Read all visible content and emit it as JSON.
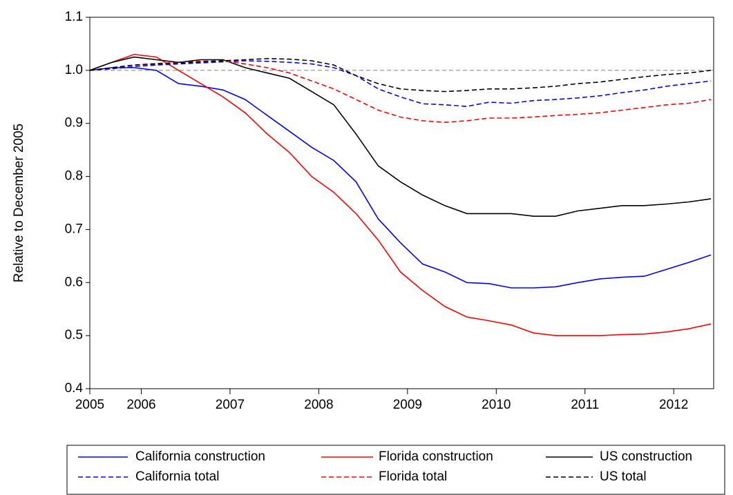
{
  "chart_data": {
    "type": "line",
    "y_label": "Relative to December 2005",
    "x": [
      2005.42,
      2005.67,
      2005.92,
      2006.17,
      2006.42,
      2006.67,
      2006.92,
      2007.17,
      2007.42,
      2007.67,
      2007.92,
      2008.17,
      2008.42,
      2008.67,
      2008.92,
      2009.17,
      2009.42,
      2009.67,
      2009.92,
      2010.17,
      2010.42,
      2010.67,
      2010.92,
      2011.17,
      2011.42,
      2011.67,
      2011.92,
      2012.17,
      2012.42
    ],
    "xlim": [
      2005.42,
      2012.45
    ],
    "xticks": [
      {
        "value": 2005.42,
        "label": "2005"
      },
      2006,
      2007,
      2008,
      2009,
      2010,
      2011,
      2012
    ],
    "ylim": [
      0.4,
      1.1
    ],
    "yticks": [
      0.4,
      0.5,
      0.6,
      0.7,
      0.8,
      0.9,
      {
        "value": 1,
        "label": "1.0"
      },
      1.1
    ],
    "reference_line": 1,
    "series": [
      {
        "name": "California construction",
        "color": "#0000ff",
        "dash": false,
        "values": [
          1.0,
          1.005,
          1.005,
          1.0,
          0.975,
          0.97,
          0.963,
          0.945,
          0.915,
          0.885,
          0.855,
          0.83,
          0.79,
          0.72,
          0.675,
          0.635,
          0.62,
          0.6,
          0.598,
          0.59,
          0.59,
          0.592,
          0.6,
          0.607,
          0.61,
          0.612,
          0.625,
          0.638,
          0.652
        ]
      },
      {
        "name": "Florida construction",
        "color": "#ff0000",
        "dash": false,
        "values": [
          1.0,
          1.015,
          1.03,
          1.025,
          1.0,
          0.975,
          0.95,
          0.92,
          0.88,
          0.845,
          0.8,
          0.77,
          0.73,
          0.68,
          0.62,
          0.585,
          0.555,
          0.535,
          0.528,
          0.52,
          0.505,
          0.5,
          0.5,
          0.5,
          0.502,
          0.503,
          0.507,
          0.513,
          0.522
        ]
      },
      {
        "name": "US construction",
        "color": "#000000",
        "dash": false,
        "values": [
          1.0,
          1.015,
          1.025,
          1.02,
          1.015,
          1.02,
          1.02,
          1.005,
          0.995,
          0.985,
          0.96,
          0.935,
          0.88,
          0.82,
          0.79,
          0.765,
          0.745,
          0.73,
          0.73,
          0.73,
          0.725,
          0.725,
          0.735,
          0.74,
          0.745,
          0.745,
          0.748,
          0.752,
          0.758
        ]
      },
      {
        "name": "California total",
        "color": "#0000ff",
        "dash": true,
        "values": [
          1.0,
          1.003,
          1.007,
          1.01,
          1.012,
          1.014,
          1.016,
          1.018,
          1.017,
          1.015,
          1.012,
          1.005,
          0.99,
          0.965,
          0.95,
          0.937,
          0.935,
          0.932,
          0.94,
          0.938,
          0.943,
          0.945,
          0.948,
          0.952,
          0.958,
          0.963,
          0.97,
          0.975,
          0.98
        ]
      },
      {
        "name": "Florida total",
        "color": "#ff0000",
        "dash": true,
        "values": [
          1.0,
          1.005,
          1.01,
          1.013,
          1.015,
          1.017,
          1.018,
          1.012,
          1.005,
          0.995,
          0.98,
          0.965,
          0.945,
          0.925,
          0.912,
          0.905,
          0.902,
          0.905,
          0.91,
          0.91,
          0.912,
          0.915,
          0.917,
          0.92,
          0.925,
          0.93,
          0.935,
          0.938,
          0.945
        ]
      },
      {
        "name": "US total",
        "color": "#000000",
        "dash": true,
        "values": [
          1.0,
          1.005,
          1.01,
          1.012,
          1.014,
          1.016,
          1.018,
          1.02,
          1.022,
          1.021,
          1.018,
          1.01,
          0.99,
          0.975,
          0.965,
          0.962,
          0.96,
          0.962,
          0.965,
          0.965,
          0.967,
          0.97,
          0.975,
          0.978,
          0.983,
          0.988,
          0.992,
          0.995,
          1.0
        ]
      }
    ]
  }
}
